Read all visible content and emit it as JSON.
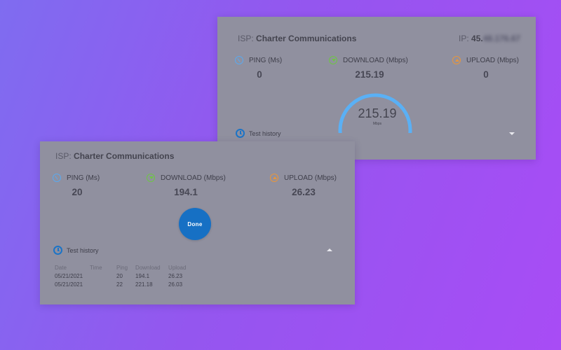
{
  "back_card": {
    "isp_prefix": "ISP:",
    "isp_name": "Charter Communications",
    "ip_prefix": "IP:",
    "ip_visible": "45.",
    "ip_blurred": "48.176.67",
    "ping_label": "PING (Ms)",
    "ping_value": "0",
    "download_label": "DOWNLOAD (Mbps)",
    "download_value": "215.19",
    "upload_label": "UPLOAD (Mbps)",
    "upload_value": "0",
    "gauge_value": "215.19",
    "gauge_unit": "Mbps",
    "gauge_fraction": 0.92,
    "history_label": "Test history"
  },
  "front_card": {
    "isp_prefix": "ISP:",
    "isp_name": "Charter Communications",
    "ping_label": "PING (Ms)",
    "ping_value": "20",
    "download_label": "DOWNLOAD (Mbps)",
    "download_value": "194.1",
    "upload_label": "UPLOAD (Mbps)",
    "upload_value": "26.23",
    "done_label": "Done",
    "history_label": "Test history",
    "history_columns": [
      "Date",
      "Time",
      "Ping",
      "Download",
      "Upload"
    ],
    "history_rows": [
      {
        "date": "05/21/2021",
        "time": "",
        "ping": "20",
        "download": "194.1",
        "upload": "26.23"
      },
      {
        "date": "05/21/2021",
        "time": "",
        "ping": "22",
        "download": "221.18",
        "upload": "26.03"
      }
    ]
  },
  "colors": {
    "card_bg": "#90909f",
    "accent_blue": "#1670c4",
    "gauge_arc": "#5ab0f5",
    "ping_icon": "#5aa9ef",
    "download_icon": "#6ec545",
    "upload_icon": "#e8963c"
  },
  "icons": {
    "ping": "ping-icon",
    "download": "download-arrow-icon",
    "upload": "upload-arrow-icon",
    "history": "clock-icon",
    "expand": "caret-down-icon",
    "collapse": "caret-up-icon"
  }
}
